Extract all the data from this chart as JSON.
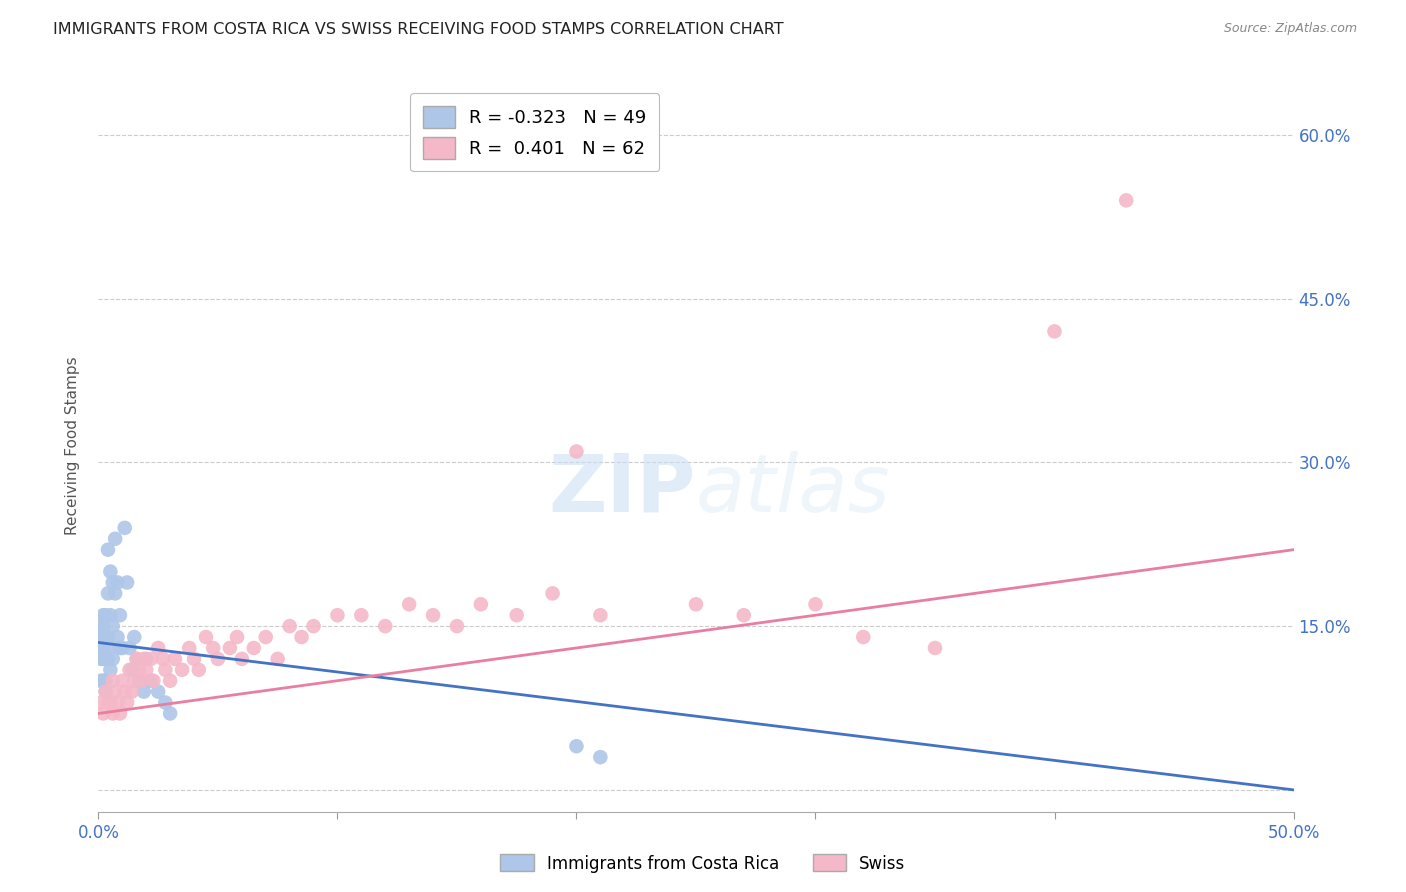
{
  "title": "IMMIGRANTS FROM COSTA RICA VS SWISS RECEIVING FOOD STAMPS CORRELATION CHART",
  "source": "Source: ZipAtlas.com",
  "ylabel": "Receiving Food Stamps",
  "xlim": [
    0.0,
    0.5
  ],
  "ylim": [
    -0.02,
    0.65
  ],
  "yticks": [
    0.0,
    0.15,
    0.3,
    0.45,
    0.6
  ],
  "ytick_labels": [
    "",
    "15.0%",
    "30.0%",
    "45.0%",
    "60.0%"
  ],
  "xticks": [
    0.0,
    0.1,
    0.2,
    0.3,
    0.4,
    0.5
  ],
  "grid_color": "#cccccc",
  "bg_color": "#ffffff",
  "costa_rica_color": "#aec6e8",
  "swiss_color": "#f4b8c8",
  "costa_rica_line_color": "#4472c4",
  "swiss_line_color": "#e87fa0",
  "legend_R_costa_rica": "R = -0.323",
  "legend_N_costa_rica": "N = 49",
  "legend_R_swiss": "R =  0.401",
  "legend_N_swiss": "N = 62",
  "label_costa_rica": "Immigrants from Costa Rica",
  "label_swiss": "Swiss",
  "title_fontsize": 11.5,
  "axis_label_fontsize": 11,
  "tick_label_color": "#4472c4",
  "tick_label_fontsize": 12,
  "costa_rica_line_start_y": 0.135,
  "costa_rica_line_end_y": 0.0,
  "swiss_line_start_y": 0.07,
  "swiss_line_end_y": 0.22,
  "costa_rica_x": [
    0.001,
    0.001,
    0.001,
    0.001,
    0.001,
    0.002,
    0.002,
    0.002,
    0.002,
    0.002,
    0.002,
    0.003,
    0.003,
    0.003,
    0.003,
    0.003,
    0.004,
    0.004,
    0.004,
    0.004,
    0.005,
    0.005,
    0.005,
    0.005,
    0.006,
    0.006,
    0.006,
    0.007,
    0.007,
    0.008,
    0.008,
    0.009,
    0.009,
    0.01,
    0.011,
    0.012,
    0.013,
    0.014,
    0.015,
    0.016,
    0.017,
    0.019,
    0.02,
    0.022,
    0.025,
    0.028,
    0.03,
    0.2,
    0.21
  ],
  "costa_rica_y": [
    0.13,
    0.15,
    0.12,
    0.1,
    0.14,
    0.16,
    0.14,
    0.12,
    0.1,
    0.15,
    0.13,
    0.14,
    0.12,
    0.1,
    0.16,
    0.09,
    0.22,
    0.18,
    0.14,
    0.12,
    0.2,
    0.16,
    0.13,
    0.11,
    0.19,
    0.15,
    0.12,
    0.23,
    0.18,
    0.19,
    0.14,
    0.16,
    0.13,
    0.13,
    0.24,
    0.19,
    0.13,
    0.11,
    0.14,
    0.12,
    0.1,
    0.09,
    0.12,
    0.1,
    0.09,
    0.08,
    0.07,
    0.04,
    0.03
  ],
  "swiss_x": [
    0.001,
    0.002,
    0.003,
    0.004,
    0.005,
    0.006,
    0.006,
    0.007,
    0.008,
    0.009,
    0.01,
    0.011,
    0.012,
    0.013,
    0.014,
    0.015,
    0.016,
    0.017,
    0.018,
    0.019,
    0.02,
    0.022,
    0.023,
    0.025,
    0.027,
    0.028,
    0.03,
    0.032,
    0.035,
    0.038,
    0.04,
    0.042,
    0.045,
    0.048,
    0.05,
    0.055,
    0.058,
    0.06,
    0.065,
    0.07,
    0.075,
    0.08,
    0.085,
    0.09,
    0.1,
    0.11,
    0.12,
    0.13,
    0.14,
    0.15,
    0.16,
    0.175,
    0.19,
    0.2,
    0.21,
    0.25,
    0.27,
    0.3,
    0.32,
    0.35,
    0.4,
    0.43
  ],
  "swiss_y": [
    0.08,
    0.07,
    0.09,
    0.08,
    0.08,
    0.1,
    0.07,
    0.09,
    0.08,
    0.07,
    0.1,
    0.09,
    0.08,
    0.11,
    0.09,
    0.1,
    0.12,
    0.11,
    0.1,
    0.12,
    0.11,
    0.12,
    0.1,
    0.13,
    0.12,
    0.11,
    0.1,
    0.12,
    0.11,
    0.13,
    0.12,
    0.11,
    0.14,
    0.13,
    0.12,
    0.13,
    0.14,
    0.12,
    0.13,
    0.14,
    0.12,
    0.15,
    0.14,
    0.15,
    0.16,
    0.16,
    0.15,
    0.17,
    0.16,
    0.15,
    0.17,
    0.16,
    0.18,
    0.31,
    0.16,
    0.17,
    0.16,
    0.17,
    0.14,
    0.13,
    0.42,
    0.54
  ]
}
